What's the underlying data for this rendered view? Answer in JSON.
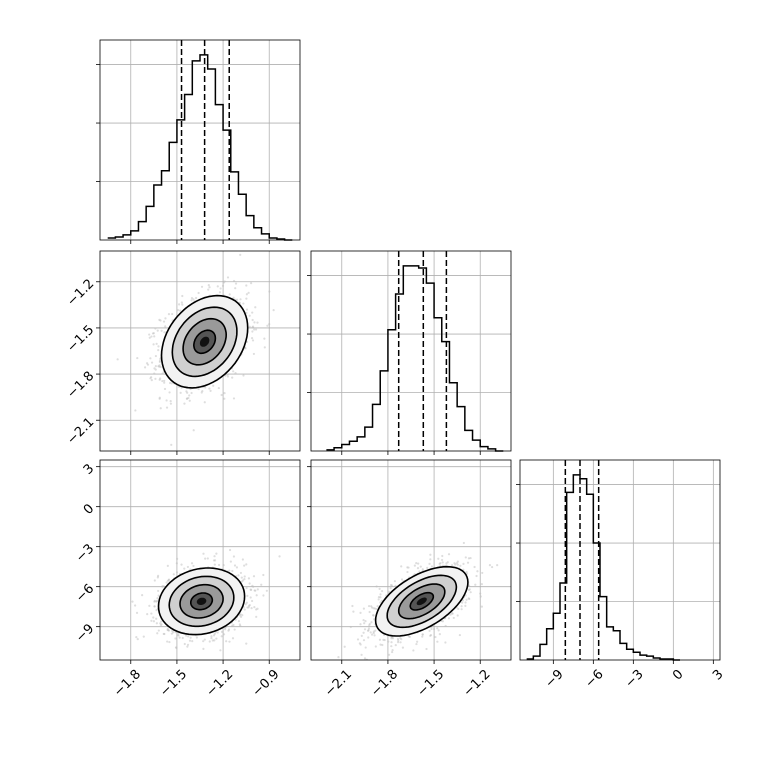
{
  "chart_data": {
    "type": "corner",
    "title": "",
    "grid": true,
    "parameters": [
      {
        "label": "",
        "range": [
          -2.0,
          -0.7
        ],
        "ticks": [
          -1.8,
          -1.5,
          -1.2,
          -0.9
        ],
        "tick_labels": [
          "−1.8",
          "−1.5",
          "−1.2",
          "−0.9"
        ],
        "quantiles": [
          -1.47,
          -1.32,
          -1.16
        ]
      },
      {
        "label": "",
        "range": [
          -2.3,
          -1.0
        ],
        "ticks": [
          -2.1,
          -1.8,
          -1.5,
          -1.2
        ],
        "tick_labels": [
          "−2.1",
          "−1.8",
          "−1.5",
          "−1.2"
        ],
        "quantiles": [
          -1.73,
          -1.57,
          -1.42
        ]
      },
      {
        "label": "",
        "range": [
          -11.5,
          3.5
        ],
        "ticks": [
          -9,
          -6,
          -3,
          0,
          3
        ],
        "tick_labels": [
          "−9",
          "−6",
          "−3",
          "0",
          "3"
        ],
        "quantiles": [
          -8.1,
          -7.0,
          -5.6
        ]
      }
    ],
    "histograms": [
      {
        "param": 0,
        "bin_edges": [
          -1.95,
          -1.9,
          -1.85,
          -1.8,
          -1.75,
          -1.7,
          -1.65,
          -1.6,
          -1.55,
          -1.5,
          -1.45,
          -1.4,
          -1.35,
          -1.3,
          -1.25,
          -1.2,
          -1.15,
          -1.1,
          -1.05,
          -1.0,
          -0.95,
          -0.9,
          -0.85,
          -0.8,
          -0.75
        ],
        "counts": [
          2,
          3,
          5,
          9,
          18,
          33,
          54,
          68,
          96,
          118,
          143,
          176,
          182,
          168,
          133,
          108,
          67,
          45,
          24,
          12,
          6,
          2,
          1,
          0
        ]
      },
      {
        "param": 1,
        "bin_edges": [
          -2.2,
          -2.15,
          -2.1,
          -2.05,
          -2.0,
          -1.95,
          -1.9,
          -1.85,
          -1.8,
          -1.75,
          -1.7,
          -1.65,
          -1.6,
          -1.55,
          -1.5,
          -1.45,
          -1.4,
          -1.35,
          -1.3,
          -1.25,
          -1.2,
          -1.15,
          -1.1,
          -1.05
        ],
        "counts": [
          1,
          3,
          6,
          9,
          13,
          22,
          43,
          74,
          112,
          145,
          171,
          171,
          169,
          155,
          123,
          101,
          63,
          41,
          19,
          10,
          4,
          2,
          0
        ]
      },
      {
        "param": 2,
        "bin_edges": [
          -11.0,
          -10.5,
          -10.0,
          -9.5,
          -9.0,
          -8.5,
          -8.0,
          -7.5,
          -7.0,
          -6.5,
          -6.0,
          -5.5,
          -5.0,
          -4.5,
          -4.0,
          -3.5,
          -3.0,
          -2.5,
          -2.0,
          -1.5,
          -1.0,
          -0.5,
          0.0,
          0.5
        ],
        "counts": [
          1,
          4,
          16,
          32,
          48,
          79,
          172,
          190,
          186,
          170,
          120,
          65,
          34,
          30,
          17,
          11,
          8,
          5,
          4,
          2,
          1,
          1,
          0
        ]
      }
    ],
    "joint": [
      {
        "x_param": 0,
        "y_param": 1,
        "mean": [
          -1.32,
          -1.59
        ],
        "sigma": [
          0.14,
          0.15
        ],
        "rho": 0.3,
        "contour_levels_sigma": [
          0.5,
          1.0,
          1.5,
          2.0
        ]
      },
      {
        "x_param": 0,
        "y_param": 2,
        "mean": [
          -1.34,
          -7.1
        ],
        "sigma": [
          0.14,
          1.25
        ],
        "rho": 0.15,
        "contour_levels_sigma": [
          0.5,
          1.0,
          1.5,
          2.0
        ]
      },
      {
        "x_param": 1,
        "y_param": 2,
        "mean": [
          -1.58,
          -7.1
        ],
        "sigma": [
          0.15,
          1.3
        ],
        "rho": 0.55,
        "contour_levels_sigma": [
          0.5,
          1.0,
          1.5,
          2.0
        ]
      }
    ]
  }
}
